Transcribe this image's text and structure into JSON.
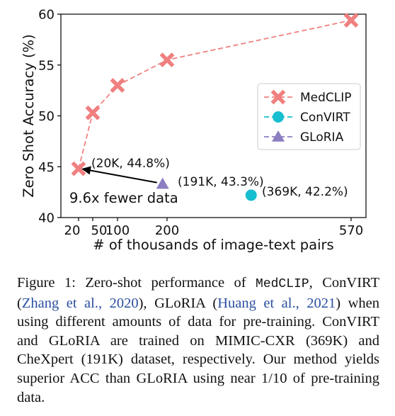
{
  "chart_data": {
    "type": "line",
    "ylabel": "Zero Shot Accuracy (%)",
    "xlabel": "# of thousands of image-text pairs",
    "ylim": [
      40,
      60
    ],
    "x_ticks": [
      20,
      50,
      100,
      200,
      570
    ],
    "x_tick_labels": [
      "20",
      "50",
      "100",
      "200",
      "570"
    ],
    "y_ticks": [
      40,
      45,
      50,
      55,
      60
    ],
    "y_tick_labels": [
      "40",
      "45",
      "50",
      "55",
      "60"
    ],
    "series": [
      {
        "name": "MedCLIP",
        "marker": "x",
        "color": "#f08080",
        "line": "dashed",
        "x": [
          20,
          50,
          100,
          200,
          570
        ],
        "y": [
          44.8,
          50.3,
          53.0,
          55.5,
          59.4
        ]
      },
      {
        "name": "ConVIRT",
        "marker": "circle",
        "color": "#17becf",
        "line": "dashed",
        "x": [
          369
        ],
        "y": [
          42.2
        ]
      },
      {
        "name": "GLoRIA",
        "marker": "triangle",
        "color": "#8c7ec0",
        "line": "dashed",
        "x": [
          191
        ],
        "y": [
          43.3
        ]
      }
    ],
    "annotations": [
      {
        "text": "(20K, 44.8%)",
        "x": 20,
        "y": 44.8
      },
      {
        "text": "(191K, 43.3%)",
        "x": 191,
        "y": 43.3
      },
      {
        "text": "(369K, 42.2%)",
        "x": 369,
        "y": 42.2
      },
      {
        "text": "9.6x fewer data"
      }
    ],
    "legend_position": "center-right",
    "grid": false
  },
  "caption": {
    "label": "Figure 1:",
    "p1": " Zero-shot performance of ",
    "medclip": "MedCLIP",
    "p2": ", ConVIRT (",
    "cite1": "Zhang et al., 2020",
    "p3": "), GLoRIA (",
    "cite2": "Huang et al., 2021",
    "p4": ") when using different amounts of data for pre-training. ConVIRT and GLoRIA are trained on MIMIC-CXR (369K) and CheXpert (191K) dataset, respectively. Our method yields superior ACC than GLoRIA using near 1/10 of pre-training data."
  },
  "colors": {
    "medclip": "#f08080",
    "convirt": "#17becf",
    "gloria": "#8c7ec0",
    "citation": "#2a4fa0"
  }
}
